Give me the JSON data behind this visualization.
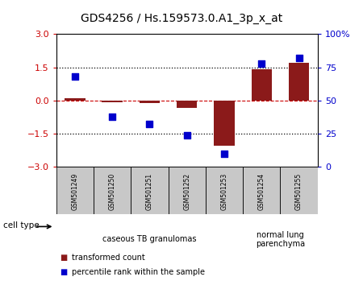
{
  "title": "GDS4256 / Hs.159573.0.A1_3p_x_at",
  "samples": [
    "GSM501249",
    "GSM501250",
    "GSM501251",
    "GSM501252",
    "GSM501253",
    "GSM501254",
    "GSM501255"
  ],
  "transformed_count": [
    0.1,
    -0.08,
    -0.1,
    -0.35,
    -2.05,
    1.42,
    1.72
  ],
  "percentile_rank": [
    68,
    38,
    32,
    24,
    10,
    78,
    82
  ],
  "ylim_left": [
    -3,
    3
  ],
  "ylim_right": [
    0,
    100
  ],
  "yticks_left": [
    -3,
    -1.5,
    0,
    1.5,
    3
  ],
  "yticks_right": [
    0,
    25,
    50,
    75,
    100
  ],
  "hlines_dotted": [
    -1.5,
    1.5
  ],
  "hline_dashed": 0,
  "bar_color": "#8B1A1A",
  "dot_color": "#0000CC",
  "cell_type_groups": [
    {
      "label": "caseous TB granulomas",
      "start": 0,
      "end": 4,
      "color": "#AAEAAA"
    },
    {
      "label": "normal lung\nparenchyma",
      "start": 5,
      "end": 6,
      "color": "#77CC77"
    }
  ],
  "legend_items": [
    {
      "label": "transformed count",
      "color": "#8B1A1A"
    },
    {
      "label": "percentile rank within the sample",
      "color": "#0000CC"
    }
  ],
  "cell_type_label": "cell type",
  "sample_box_color": "#C8C8C8",
  "axis_left_color": "#CC0000",
  "axis_right_color": "#0000CC"
}
